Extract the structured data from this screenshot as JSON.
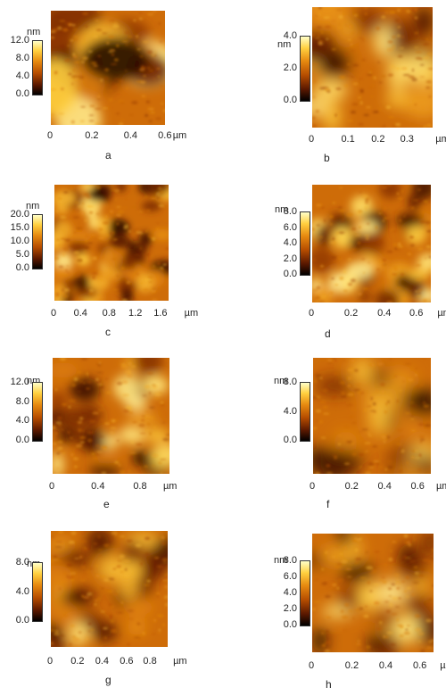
{
  "panels": [
    {
      "label": "a",
      "unit": "nm",
      "cticks": [
        "12.0",
        "8.0",
        "4.0",
        "0.0"
      ],
      "xticks": [
        "0",
        "0.2",
        "0.4",
        "0.6"
      ],
      "xunit": "µm"
    },
    {
      "label": "b",
      "unit": "nm",
      "cticks": [
        "4.0",
        "2.0",
        "0.0"
      ],
      "xticks": [
        "0",
        "0.1",
        "0.2",
        "0.3"
      ],
      "xunit": "µm"
    },
    {
      "label": "c",
      "unit": "nm",
      "cticks": [
        "20.0",
        "15.0",
        "10.0",
        "5.0",
        "0.0"
      ],
      "xticks": [
        "0",
        "0.4",
        "0.8",
        "1.2",
        "1.6"
      ],
      "xunit": "µm"
    },
    {
      "label": "d",
      "unit": "nm",
      "cticks": [
        "8.0",
        "6.0",
        "4.0",
        "2.0",
        "0.0"
      ],
      "xticks": [
        "0",
        "0.2",
        "0.4",
        "0.6"
      ],
      "xunit": "µm"
    },
    {
      "label": "e",
      "unit": "nm",
      "cticks": [
        "12.0",
        "8.0",
        "4.0",
        "0.0"
      ],
      "xticks": [
        "0",
        "0.4",
        "0.8"
      ],
      "xunit": "µm"
    },
    {
      "label": "f",
      "unit": "nm",
      "cticks": [
        "8.0",
        "4.0",
        "0.0"
      ],
      "xticks": [
        "0",
        "0.2",
        "0.4",
        "0.6"
      ],
      "xunit": "µm"
    },
    {
      "label": "g",
      "unit": "nm",
      "cticks": [
        "8.0",
        "4.0",
        "0.0"
      ],
      "xticks": [
        "0",
        "0.2",
        "0.4",
        "0.6",
        "0.8"
      ],
      "xunit": "µm"
    },
    {
      "label": "h",
      "unit": "nm",
      "cticks": [
        "8.0",
        "6.0",
        "4.0",
        "2.0",
        "0.0"
      ],
      "xticks": [
        "0",
        "0.2",
        "0.4",
        "0.6"
      ],
      "xunit": "µm"
    }
  ],
  "colors": {
    "colormap": [
      "#000000",
      "#5a1800",
      "#b64d00",
      "#e68a10",
      "#ffd040",
      "#ffffc8"
    ]
  }
}
